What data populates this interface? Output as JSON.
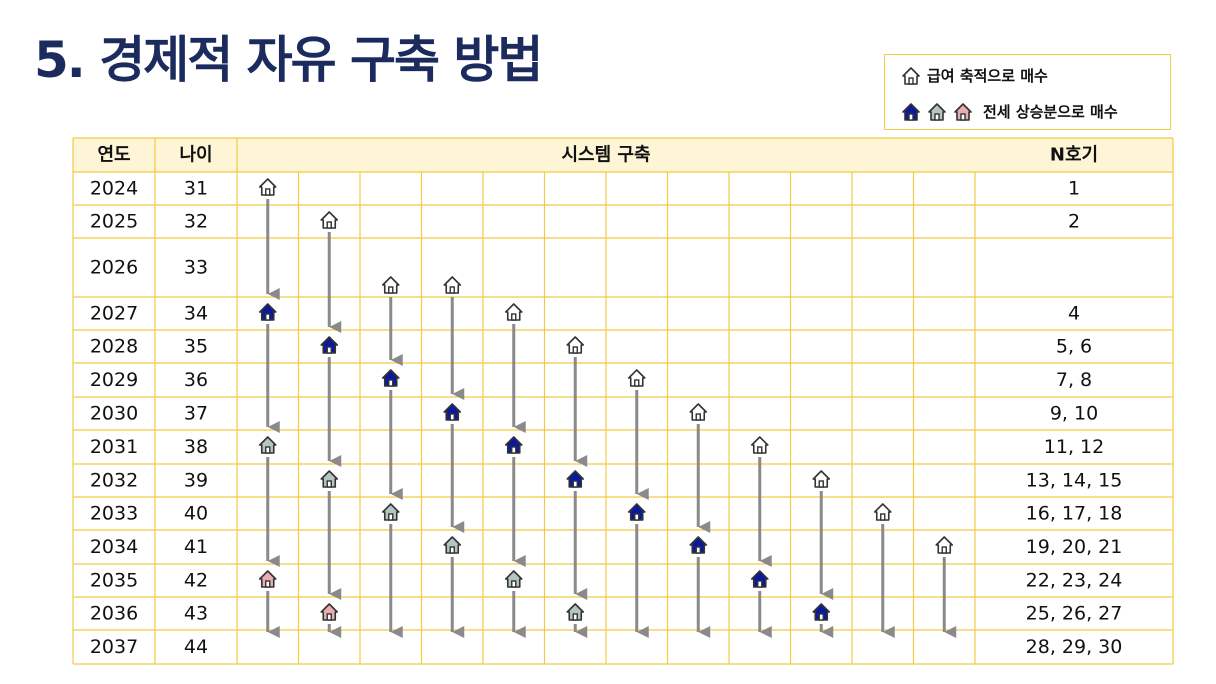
{
  "title": "5. 경제적 자유 구축 방법",
  "legend": {
    "item1_label": "급여 축적으로 매수",
    "item2_label": "전세 상승분으로 매수"
  },
  "table": {
    "headers": {
      "year": "연도",
      "age": "나이",
      "system": "시스템 구축",
      "n": "N호기"
    },
    "rows": [
      {
        "year": "2024",
        "age": "31",
        "n": "1"
      },
      {
        "year": "2025",
        "age": "32",
        "n": "2"
      },
      {
        "year": "2026",
        "age": "33",
        "n": ""
      },
      {
        "year": "2027",
        "age": "34",
        "n": "4"
      },
      {
        "year": "2028",
        "age": "35",
        "n": "5, 6"
      },
      {
        "year": "2029",
        "age": "36",
        "n": "7, 8"
      },
      {
        "year": "2030",
        "age": "37",
        "n": "9, 10"
      },
      {
        "year": "2031",
        "age": "38",
        "n": "11, 12"
      },
      {
        "year": "2032",
        "age": "39",
        "n": "13, 14, 15"
      },
      {
        "year": "2033",
        "age": "40",
        "n": "16, 17, 18"
      },
      {
        "year": "2034",
        "age": "41",
        "n": "19, 20, 21"
      },
      {
        "year": "2035",
        "age": "42",
        "n": "22, 23, 24"
      },
      {
        "year": "2036",
        "age": "43",
        "n": "25, 26, 27"
      },
      {
        "year": "2037",
        "age": "44",
        "n": "28, 29, 30"
      }
    ]
  },
  "house_icons": {
    "salary": "house-outline-icon (white)",
    "jeonse_1": "house-icon (navy)",
    "jeonse_2": "house-icon (grey-green)",
    "jeonse_3": "house-icon (pink)"
  },
  "colors": {
    "title": "#1c2b5e",
    "grid_line": "#f2cb45",
    "header_bg": "#fdf5d6",
    "arrow": "#8a8a8a",
    "house_white": "#ffffff",
    "house_navy": "#0b1a9c",
    "house_gray": "#b5c6c2",
    "house_pink": "#e8aeb0"
  },
  "chains": [
    {
      "column": 1,
      "start_year": "2024",
      "purchases": [
        {
          "year": "2024",
          "type": "white"
        },
        {
          "year": "2027",
          "type": "navy"
        },
        {
          "year": "2031",
          "type": "gray"
        },
        {
          "year": "2035",
          "type": "pink"
        }
      ],
      "end_year": "2037"
    },
    {
      "column": 2,
      "start_year": "2025",
      "purchases": [
        {
          "year": "2025",
          "type": "white"
        },
        {
          "year": "2028",
          "type": "navy"
        },
        {
          "year": "2032",
          "type": "gray"
        },
        {
          "year": "2036",
          "type": "pink"
        }
      ],
      "end_year": "2037"
    },
    {
      "column": 3,
      "start_year": "2026",
      "purchases": [
        {
          "year": "2026",
          "type": "white"
        },
        {
          "year": "2029",
          "type": "navy"
        },
        {
          "year": "2033",
          "type": "gray"
        }
      ],
      "end_year": "2037"
    },
    {
      "column": 4,
      "start_year": "2026",
      "purchases": [
        {
          "year": "2026",
          "type": "white"
        },
        {
          "year": "2030",
          "type": "navy"
        },
        {
          "year": "2034",
          "type": "gray"
        }
      ],
      "end_year": "2037"
    },
    {
      "column": 5,
      "start_year": "2027",
      "purchases": [
        {
          "year": "2027",
          "type": "white"
        },
        {
          "year": "2031",
          "type": "navy"
        },
        {
          "year": "2035",
          "type": "gray"
        }
      ],
      "end_year": "2037"
    },
    {
      "column": 6,
      "start_year": "2028",
      "purchases": [
        {
          "year": "2028",
          "type": "white"
        },
        {
          "year": "2032",
          "type": "navy"
        },
        {
          "year": "2036",
          "type": "gray"
        }
      ],
      "end_year": "2037"
    },
    {
      "column": 7,
      "start_year": "2029",
      "purchases": [
        {
          "year": "2029",
          "type": "white"
        },
        {
          "year": "2033",
          "type": "navy"
        }
      ],
      "end_year": "2037"
    },
    {
      "column": 8,
      "start_year": "2030",
      "purchases": [
        {
          "year": "2030",
          "type": "white"
        },
        {
          "year": "2034",
          "type": "navy"
        }
      ],
      "end_year": "2037"
    },
    {
      "column": 9,
      "start_year": "2031",
      "purchases": [
        {
          "year": "2031",
          "type": "white"
        },
        {
          "year": "2035",
          "type": "navy"
        }
      ],
      "end_year": "2037"
    },
    {
      "column": 10,
      "start_year": "2032",
      "purchases": [
        {
          "year": "2032",
          "type": "white"
        },
        {
          "year": "2036",
          "type": "navy"
        }
      ],
      "end_year": "2037"
    },
    {
      "column": 11,
      "start_year": "2033",
      "purchases": [
        {
          "year": "2033",
          "type": "white"
        }
      ],
      "end_year": "2037"
    },
    {
      "column": 12,
      "start_year": "2034",
      "purchases": [
        {
          "year": "2034",
          "type": "white"
        }
      ],
      "end_year": "2037"
    }
  ]
}
